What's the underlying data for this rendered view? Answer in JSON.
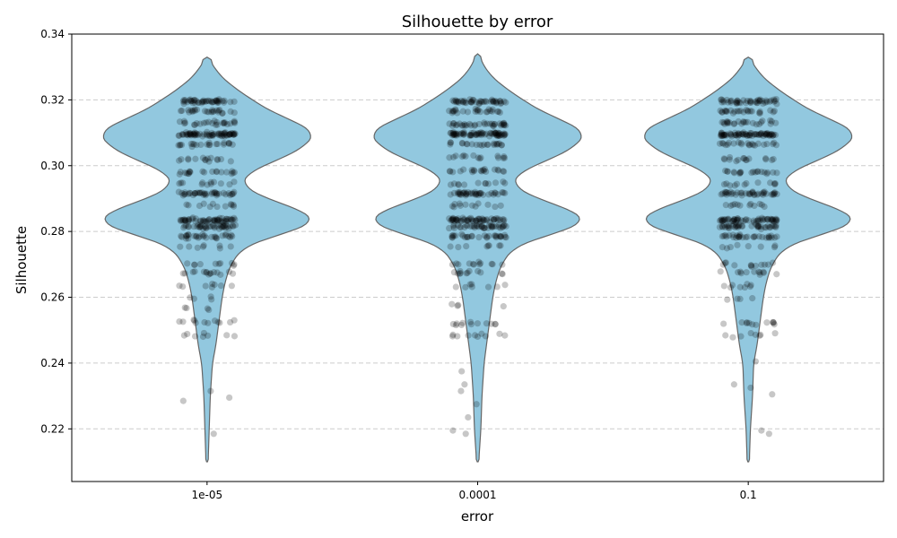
{
  "chart_data": {
    "type": "violin",
    "title": "Silhouette by error",
    "xlabel": "error",
    "ylabel": "Silhouette",
    "categories": [
      "1e-05",
      "0.0001",
      "0.1"
    ],
    "ylim": [
      0.204,
      0.34
    ],
    "yticks": [
      0.22,
      0.24,
      0.26,
      0.28,
      0.3,
      0.32,
      0.34
    ],
    "ytick_labels": [
      "0.22",
      "0.24",
      "0.26",
      "0.28",
      "0.30",
      "0.32",
      "0.34"
    ],
    "grid": "y-dashed",
    "violin_color": "#92c8df",
    "violin_edge_color": "#666666",
    "point_color": "#000000",
    "series": [
      {
        "category": "1e-05",
        "min": 0.21,
        "max": 0.333,
        "modes": [
          0.31,
          0.283
        ],
        "density": [
          [
            0.21,
            0.01
          ],
          [
            0.22,
            0.02
          ],
          [
            0.23,
            0.03
          ],
          [
            0.24,
            0.05
          ],
          [
            0.245,
            0.08
          ],
          [
            0.25,
            0.1
          ],
          [
            0.255,
            0.12
          ],
          [
            0.26,
            0.14
          ],
          [
            0.265,
            0.17
          ],
          [
            0.27,
            0.22
          ],
          [
            0.275,
            0.33
          ],
          [
            0.278,
            0.55
          ],
          [
            0.28,
            0.8
          ],
          [
            0.283,
            1.0
          ],
          [
            0.286,
            0.92
          ],
          [
            0.29,
            0.55
          ],
          [
            0.294,
            0.32
          ],
          [
            0.298,
            0.38
          ],
          [
            0.302,
            0.68
          ],
          [
            0.306,
            0.92
          ],
          [
            0.31,
            1.0
          ],
          [
            0.313,
            0.85
          ],
          [
            0.316,
            0.62
          ],
          [
            0.32,
            0.42
          ],
          [
            0.324,
            0.24
          ],
          [
            0.328,
            0.1
          ],
          [
            0.331,
            0.05
          ],
          [
            0.333,
            0.0
          ]
        ],
        "point_clusters": [
          [
            0.3195,
            45
          ],
          [
            0.3165,
            25
          ],
          [
            0.313,
            25
          ],
          [
            0.3095,
            70
          ],
          [
            0.3065,
            22
          ],
          [
            0.302,
            15
          ],
          [
            0.298,
            20
          ],
          [
            0.2945,
            12
          ],
          [
            0.2915,
            40
          ],
          [
            0.288,
            12
          ],
          [
            0.2835,
            55
          ],
          [
            0.2815,
            40
          ],
          [
            0.2785,
            30
          ],
          [
            0.2755,
            8
          ],
          [
            0.27,
            10
          ],
          [
            0.2675,
            15
          ],
          [
            0.2635,
            8
          ],
          [
            0.2595,
            4
          ],
          [
            0.2565,
            4
          ],
          [
            0.2525,
            12
          ],
          [
            0.2485,
            8
          ]
        ],
        "outliers": [
          0.2315,
          0.2295,
          0.2285,
          0.2185
        ]
      },
      {
        "category": "0.0001",
        "min": 0.21,
        "max": 0.334,
        "modes": [
          0.31,
          0.283
        ],
        "density": [
          [
            0.21,
            0.01
          ],
          [
            0.22,
            0.03
          ],
          [
            0.23,
            0.04
          ],
          [
            0.24,
            0.06
          ],
          [
            0.245,
            0.08
          ],
          [
            0.25,
            0.1
          ],
          [
            0.255,
            0.12
          ],
          [
            0.26,
            0.14
          ],
          [
            0.265,
            0.17
          ],
          [
            0.27,
            0.22
          ],
          [
            0.275,
            0.33
          ],
          [
            0.278,
            0.55
          ],
          [
            0.28,
            0.8
          ],
          [
            0.283,
            1.0
          ],
          [
            0.286,
            0.92
          ],
          [
            0.29,
            0.55
          ],
          [
            0.294,
            0.32
          ],
          [
            0.298,
            0.38
          ],
          [
            0.302,
            0.68
          ],
          [
            0.306,
            0.92
          ],
          [
            0.31,
            1.0
          ],
          [
            0.313,
            0.85
          ],
          [
            0.316,
            0.62
          ],
          [
            0.32,
            0.42
          ],
          [
            0.324,
            0.24
          ],
          [
            0.328,
            0.1
          ],
          [
            0.331,
            0.05
          ],
          [
            0.334,
            0.0
          ]
        ],
        "point_clusters": [
          [
            0.3195,
            45
          ],
          [
            0.3165,
            25
          ],
          [
            0.3125,
            35
          ],
          [
            0.3095,
            70
          ],
          [
            0.3065,
            22
          ],
          [
            0.3025,
            15
          ],
          [
            0.2985,
            20
          ],
          [
            0.2945,
            12
          ],
          [
            0.2915,
            40
          ],
          [
            0.288,
            12
          ],
          [
            0.2835,
            55
          ],
          [
            0.2815,
            40
          ],
          [
            0.2785,
            30
          ],
          [
            0.2755,
            8
          ],
          [
            0.27,
            12
          ],
          [
            0.2675,
            12
          ],
          [
            0.2635,
            8
          ],
          [
            0.2575,
            4
          ],
          [
            0.252,
            12
          ],
          [
            0.2485,
            10
          ]
        ],
        "outliers": [
          0.2375,
          0.2335,
          0.2315,
          0.2275,
          0.2235,
          0.2195,
          0.2185
        ]
      },
      {
        "category": "0.1",
        "min": 0.21,
        "max": 0.333,
        "modes": [
          0.31,
          0.283
        ],
        "density": [
          [
            0.21,
            0.01
          ],
          [
            0.22,
            0.02
          ],
          [
            0.23,
            0.04
          ],
          [
            0.24,
            0.05
          ],
          [
            0.245,
            0.08
          ],
          [
            0.25,
            0.1
          ],
          [
            0.255,
            0.12
          ],
          [
            0.26,
            0.14
          ],
          [
            0.265,
            0.17
          ],
          [
            0.27,
            0.22
          ],
          [
            0.275,
            0.33
          ],
          [
            0.278,
            0.55
          ],
          [
            0.28,
            0.8
          ],
          [
            0.283,
            1.0
          ],
          [
            0.286,
            0.92
          ],
          [
            0.29,
            0.55
          ],
          [
            0.294,
            0.32
          ],
          [
            0.298,
            0.38
          ],
          [
            0.302,
            0.68
          ],
          [
            0.306,
            0.92
          ],
          [
            0.31,
            1.0
          ],
          [
            0.313,
            0.85
          ],
          [
            0.316,
            0.62
          ],
          [
            0.32,
            0.42
          ],
          [
            0.324,
            0.24
          ],
          [
            0.328,
            0.1
          ],
          [
            0.331,
            0.05
          ],
          [
            0.333,
            0.0
          ]
        ],
        "point_clusters": [
          [
            0.3195,
            45
          ],
          [
            0.3165,
            25
          ],
          [
            0.313,
            25
          ],
          [
            0.3095,
            70
          ],
          [
            0.3065,
            22
          ],
          [
            0.302,
            15
          ],
          [
            0.298,
            20
          ],
          [
            0.2945,
            12
          ],
          [
            0.2915,
            40
          ],
          [
            0.288,
            12
          ],
          [
            0.2835,
            55
          ],
          [
            0.2815,
            40
          ],
          [
            0.2785,
            30
          ],
          [
            0.2755,
            8
          ],
          [
            0.27,
            12
          ],
          [
            0.2675,
            12
          ],
          [
            0.2635,
            8
          ],
          [
            0.2595,
            4
          ],
          [
            0.252,
            12
          ],
          [
            0.2485,
            8
          ]
        ],
        "outliers": [
          0.2405,
          0.2335,
          0.2325,
          0.2305,
          0.2195,
          0.2185
        ]
      }
    ]
  }
}
